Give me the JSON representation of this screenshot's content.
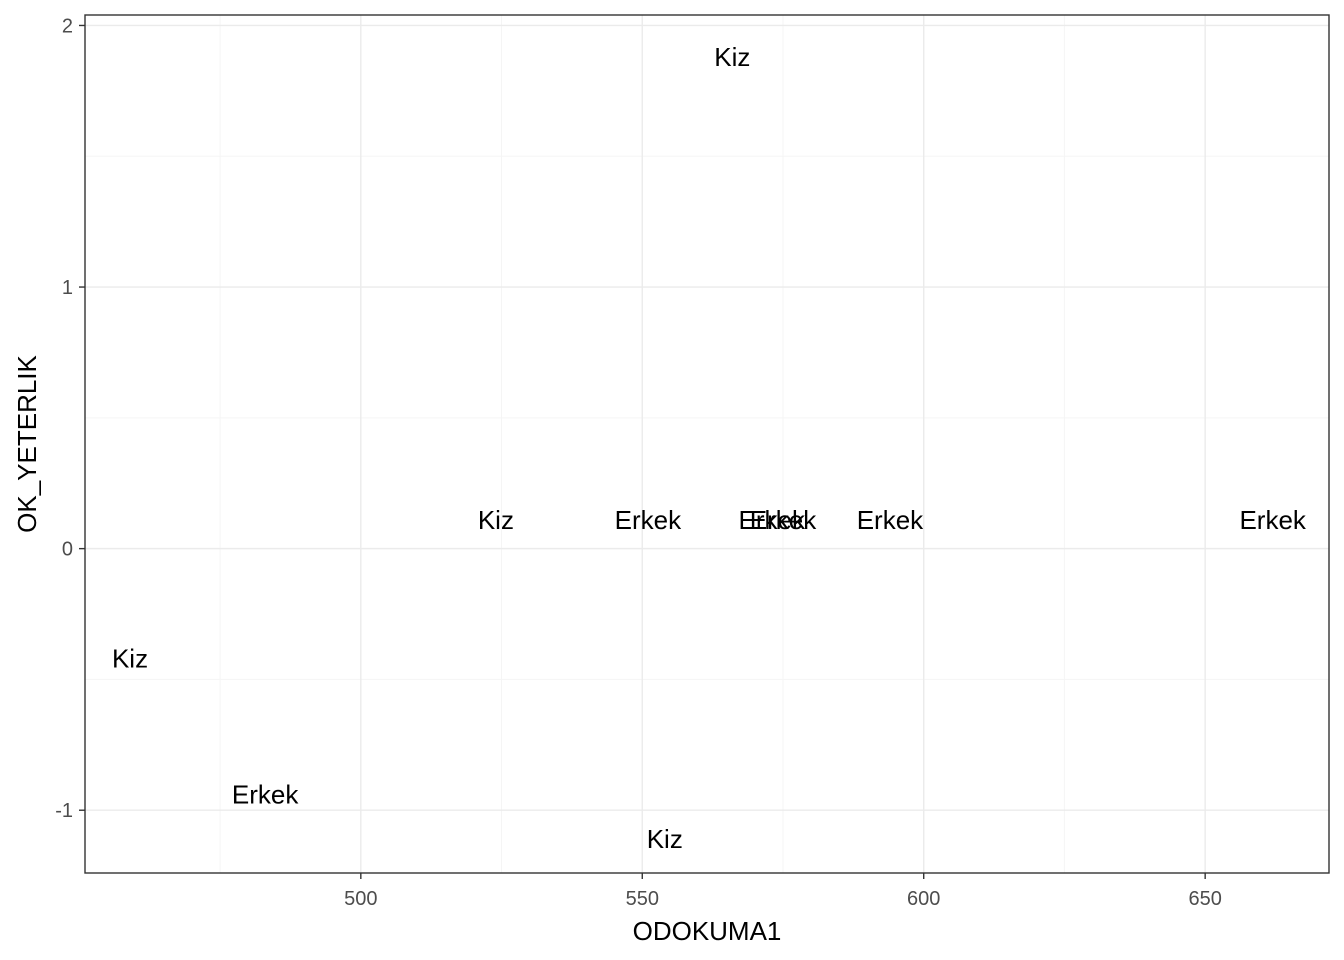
{
  "chart_data": {
    "type": "scatter",
    "marker": "text-label",
    "xlabel": "ODOKUMA1",
    "ylabel": "OK_YETERLIK",
    "xlim": [
      451,
      672
    ],
    "ylim": [
      -1.24,
      2.04
    ],
    "x_ticks": [
      500,
      550,
      600,
      650
    ],
    "y_ticks": [
      -1,
      0,
      1,
      2
    ],
    "grid": true,
    "theme": "black-and-white",
    "colors": {
      "panel_border": "#333333",
      "grid_major": "#ebebeb",
      "grid_minor": "#f5f5f5",
      "tick_label": "#4d4d4d",
      "text": "#000000"
    },
    "points": [
      {
        "x": 566,
        "y": 1.88,
        "label": "Kiz"
      },
      {
        "x": 524,
        "y": 0.11,
        "label": "Kiz"
      },
      {
        "x": 551,
        "y": 0.11,
        "label": "Erkek"
      },
      {
        "x": 573,
        "y": 0.11,
        "label": "Erkek"
      },
      {
        "x": 575,
        "y": 0.11,
        "label": "Erkek"
      },
      {
        "x": 594,
        "y": 0.11,
        "label": "Erkek"
      },
      {
        "x": 662,
        "y": 0.11,
        "label": "Erkek"
      },
      {
        "x": 459,
        "y": -0.42,
        "label": "Kiz"
      },
      {
        "x": 483,
        "y": -0.94,
        "label": "Erkek"
      },
      {
        "x": 554,
        "y": -1.11,
        "label": "Kiz"
      }
    ]
  }
}
